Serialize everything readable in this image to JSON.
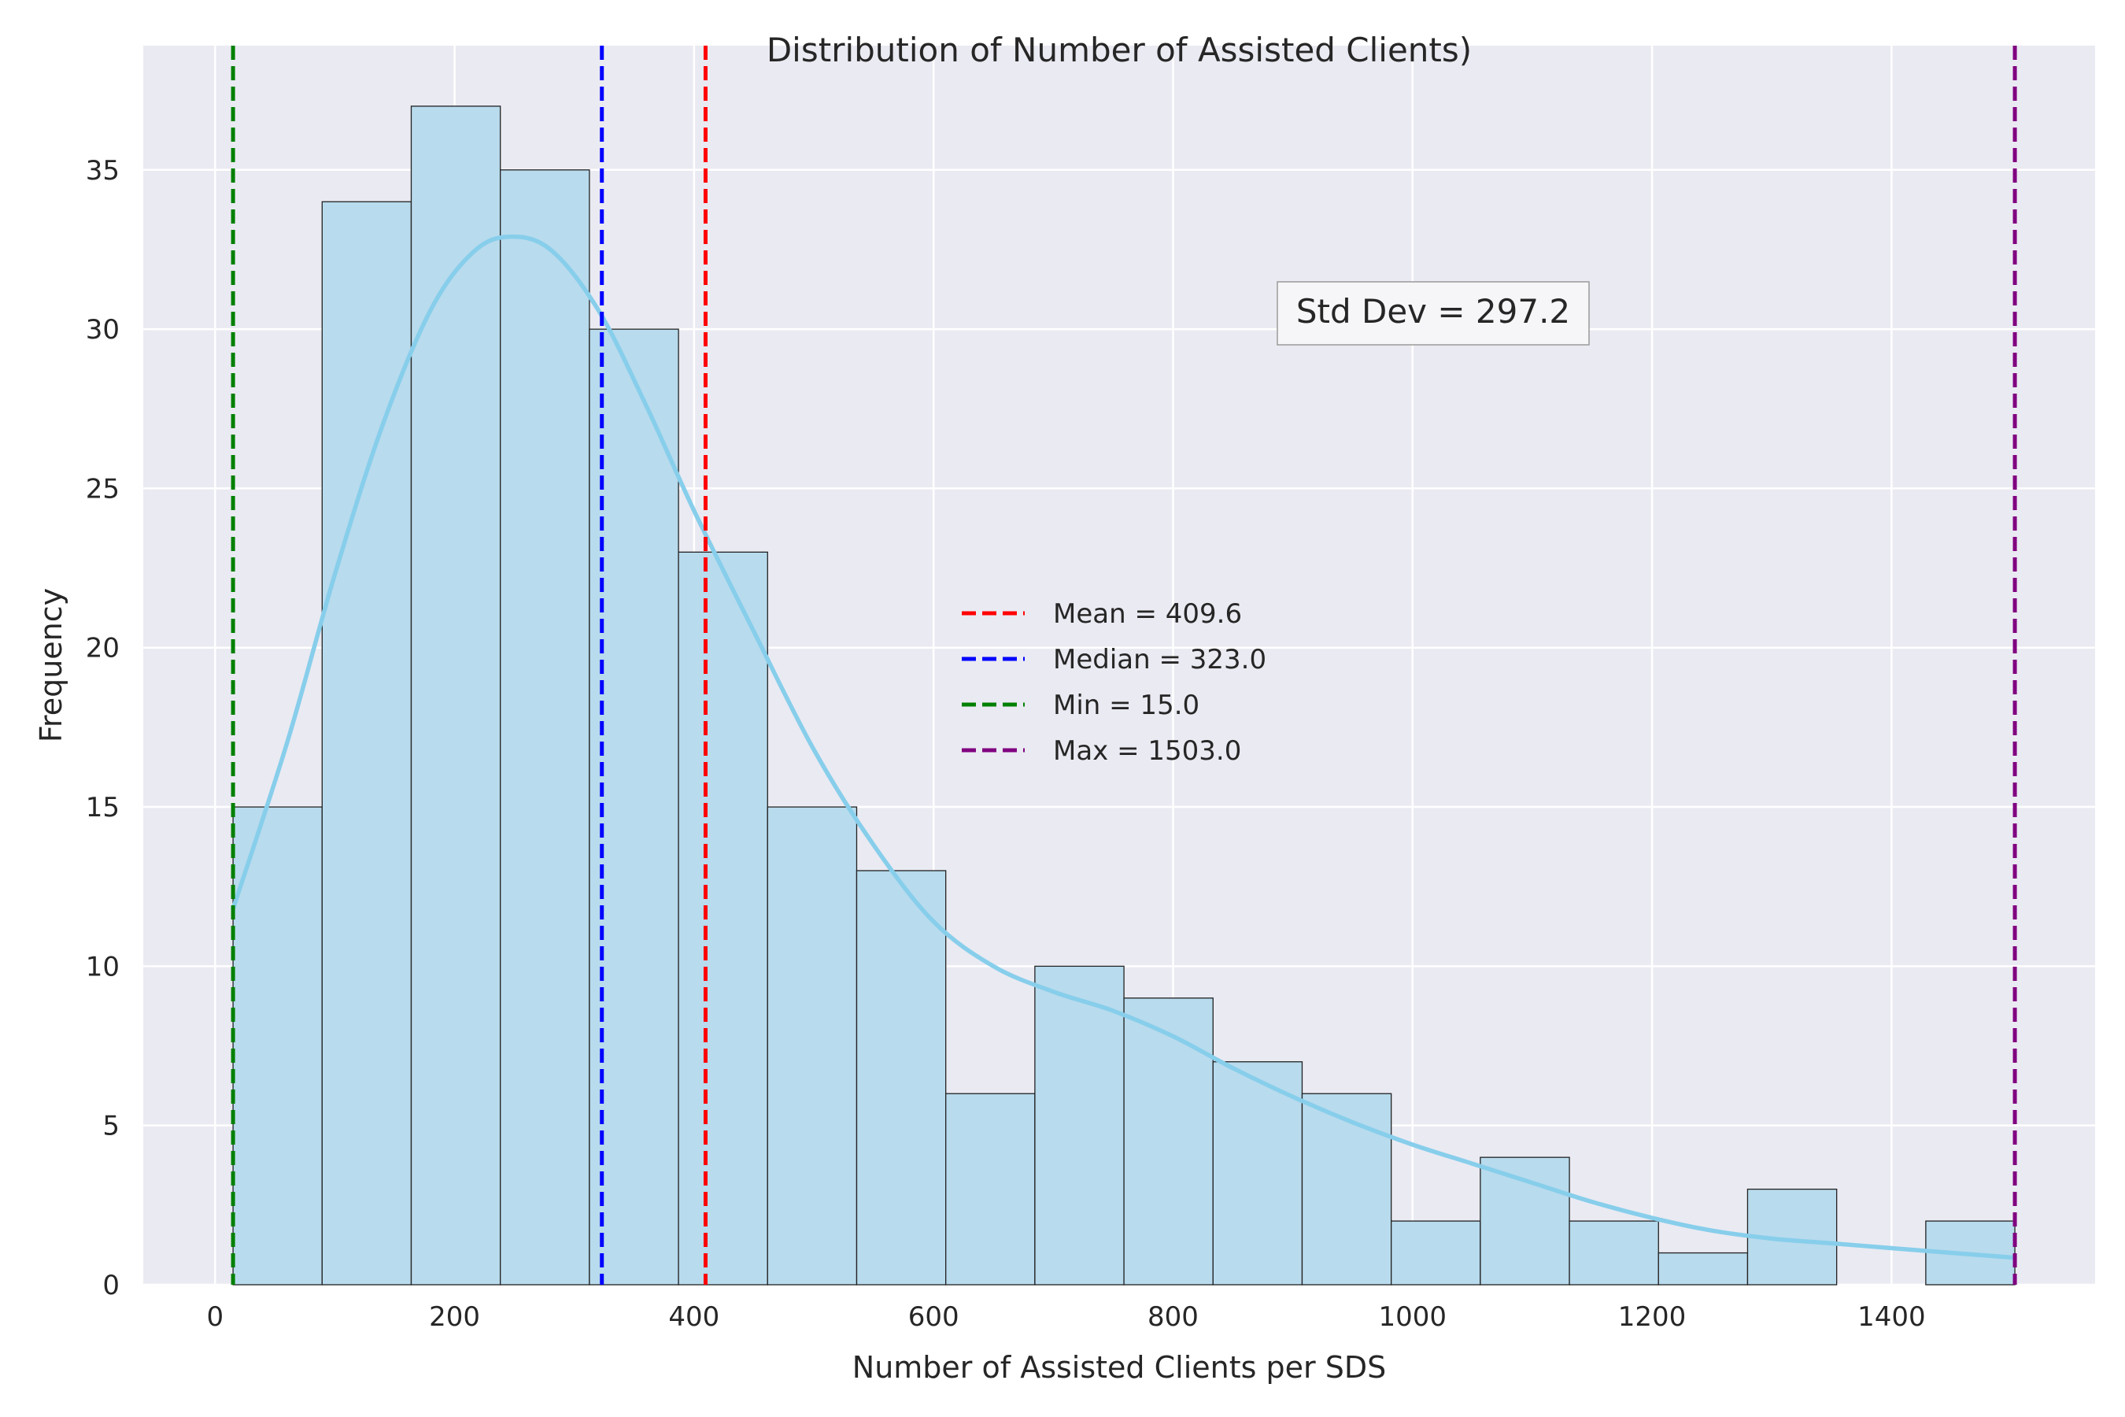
{
  "chart_data": {
    "type": "histogram",
    "title": "Distribution of Number of Assisted Clients)",
    "xlabel": "Number of Assisted Clients per SDS",
    "ylabel": "Frequency",
    "xlim": [
      -60,
      1570
    ],
    "ylim": [
      0,
      38.9
    ],
    "x_ticks": [
      0,
      200,
      400,
      600,
      800,
      1000,
      1200,
      1400
    ],
    "y_ticks": [
      0,
      5,
      10,
      15,
      20,
      25,
      30,
      35
    ],
    "grid": true,
    "bins": {
      "edges": [
        15,
        89.4,
        163.8,
        238.2,
        312.6,
        387,
        461.4,
        535.8,
        610.2,
        684.6,
        759,
        833.4,
        907.8,
        982.2,
        1056.6,
        1131,
        1205.4,
        1279.8,
        1354.2,
        1428.6,
        1503
      ],
      "counts": [
        15,
        34,
        37,
        35,
        30,
        23,
        15,
        13,
        6,
        10,
        9,
        7,
        6,
        2,
        4,
        2,
        1,
        3,
        0,
        2
      ]
    },
    "kde": {
      "x": [
        15,
        60,
        100,
        140,
        180,
        215,
        245,
        280,
        320,
        360,
        400,
        450,
        500,
        550,
        600,
        650,
        700,
        750,
        800,
        850,
        900,
        950,
        1000,
        1050,
        1100,
        1150,
        1200,
        1250,
        1300,
        1350,
        1400,
        1450,
        1503
      ],
      "y": [
        11.8,
        17.0,
        22.3,
        27.0,
        30.6,
        32.4,
        32.9,
        32.5,
        30.6,
        27.6,
        24.3,
        20.5,
        16.8,
        13.8,
        11.4,
        10.0,
        9.2,
        8.6,
        7.8,
        6.8,
        5.9,
        5.1,
        4.4,
        3.8,
        3.2,
        2.6,
        2.1,
        1.7,
        1.45,
        1.3,
        1.15,
        1.0,
        0.85
      ]
    },
    "reference_lines": [
      {
        "label": "Mean = 409.6",
        "x": 409.6,
        "color": "#ff0000"
      },
      {
        "label": "Median = 323.0",
        "x": 323.0,
        "color": "#0000ff"
      },
      {
        "label": "Min = 15.0",
        "x": 15.0,
        "color": "#008000"
      },
      {
        "label": "Max = 1503.0",
        "x": 1503.0,
        "color": "#800080"
      }
    ],
    "annotation": "Std Dev = 297.2",
    "legend_placement": "center",
    "colors": {
      "bar_fill": "#b8dbed",
      "bar_edge": "#222222",
      "kde": "#87ceeb",
      "plot_bg": "#eaeaf2",
      "grid": "#ffffff"
    }
  }
}
